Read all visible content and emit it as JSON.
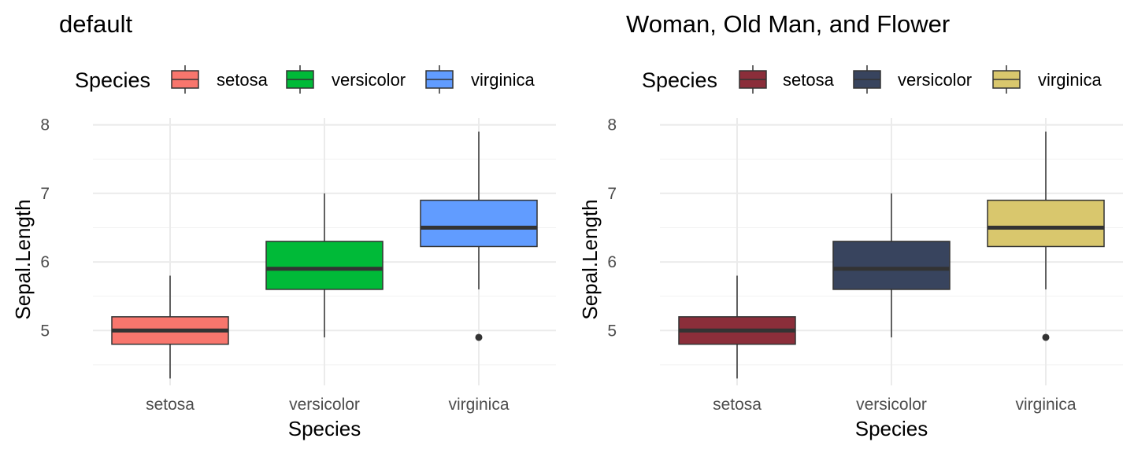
{
  "chart_data": [
    {
      "type": "boxplot",
      "title": "default",
      "xlabel": "Species",
      "ylabel": "Sepal.Length",
      "ylim": [
        4.2,
        8.1
      ],
      "yticks": [
        5,
        6,
        7,
        8
      ],
      "grid": true,
      "legend": {
        "title": "Species",
        "position": "top"
      },
      "categories": [
        "setosa",
        "versicolor",
        "virginica"
      ],
      "series": [
        {
          "name": "setosa",
          "color": "#F8766D",
          "min": 4.3,
          "q1": 4.8,
          "median": 5.0,
          "q3": 5.2,
          "max": 5.8,
          "outliers": []
        },
        {
          "name": "versicolor",
          "color": "#00BA38",
          "min": 4.9,
          "q1": 5.6,
          "median": 5.9,
          "q3": 6.3,
          "max": 7.0,
          "outliers": []
        },
        {
          "name": "virginica",
          "color": "#619CFF",
          "min": 5.6,
          "q1": 6.225,
          "median": 6.5,
          "q3": 6.9,
          "max": 7.9,
          "outliers": [
            4.9
          ]
        }
      ]
    },
    {
      "type": "boxplot",
      "title": "Woman, Old Man, and Flower",
      "xlabel": "Species",
      "ylabel": "Sepal.Length",
      "ylim": [
        4.2,
        8.1
      ],
      "yticks": [
        5,
        6,
        7,
        8
      ],
      "grid": true,
      "legend": {
        "title": "Species",
        "position": "top"
      },
      "categories": [
        "setosa",
        "versicolor",
        "virginica"
      ],
      "series": [
        {
          "name": "setosa",
          "color": "#8B2E3A",
          "min": 4.3,
          "q1": 4.8,
          "median": 5.0,
          "q3": 5.2,
          "max": 5.8,
          "outliers": []
        },
        {
          "name": "versicolor",
          "color": "#38445E",
          "min": 4.9,
          "q1": 5.6,
          "median": 5.9,
          "q3": 6.3,
          "max": 7.0,
          "outliers": []
        },
        {
          "name": "virginica",
          "color": "#D9C76D",
          "min": 5.6,
          "q1": 6.225,
          "median": 6.5,
          "q3": 6.9,
          "max": 7.9,
          "outliers": [
            4.9
          ]
        }
      ]
    }
  ]
}
